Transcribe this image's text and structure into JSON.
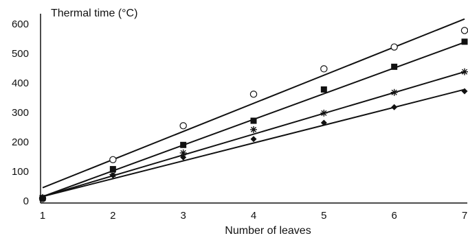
{
  "chart_data": {
    "type": "scatter",
    "title": "",
    "xlabel": "Number of leaves",
    "ylabel": "Thermal time (°C)",
    "xlim": [
      1,
      7
    ],
    "ylim": [
      0,
      600
    ],
    "x_ticks": [
      "1",
      "2",
      "3",
      "4",
      "5",
      "6",
      "7"
    ],
    "y_ticks": [
      "0",
      "100",
      "200",
      "300",
      "400",
      "500",
      "600"
    ],
    "grid": false,
    "legend": "none",
    "colors": {
      "ink": "#111111",
      "background": "#ffffff"
    },
    "series": [
      {
        "marker": "open-circle",
        "x": [
          1,
          2,
          3,
          4,
          5,
          6,
          7
        ],
        "y": [
          8,
          140,
          255,
          362,
          448,
          522,
          578
        ],
        "fit": {
          "x": [
            1,
            7
          ],
          "y": [
            45,
            617
          ]
        }
      },
      {
        "marker": "filled-square",
        "x": [
          1,
          2,
          3,
          4,
          5,
          6,
          7
        ],
        "y": [
          10,
          108,
          190,
          272,
          378,
          455,
          540
        ],
        "fit": {
          "x": [
            1,
            7
          ],
          "y": [
            15,
            538
          ]
        }
      },
      {
        "marker": "asterisk",
        "x": [
          1,
          2,
          3,
          4,
          5,
          6,
          7
        ],
        "y": [
          12,
          90,
          163,
          242,
          298,
          368,
          438
        ],
        "fit": {
          "x": [
            1,
            7
          ],
          "y": [
            15,
            438
          ]
        }
      },
      {
        "marker": "filled-diamond",
        "x": [
          1,
          2,
          3,
          4,
          5,
          6,
          7
        ],
        "y": [
          10,
          87,
          148,
          210,
          265,
          318,
          372
        ],
        "fit": {
          "x": [
            1,
            7
          ],
          "y": [
            15,
            378
          ]
        }
      }
    ]
  }
}
